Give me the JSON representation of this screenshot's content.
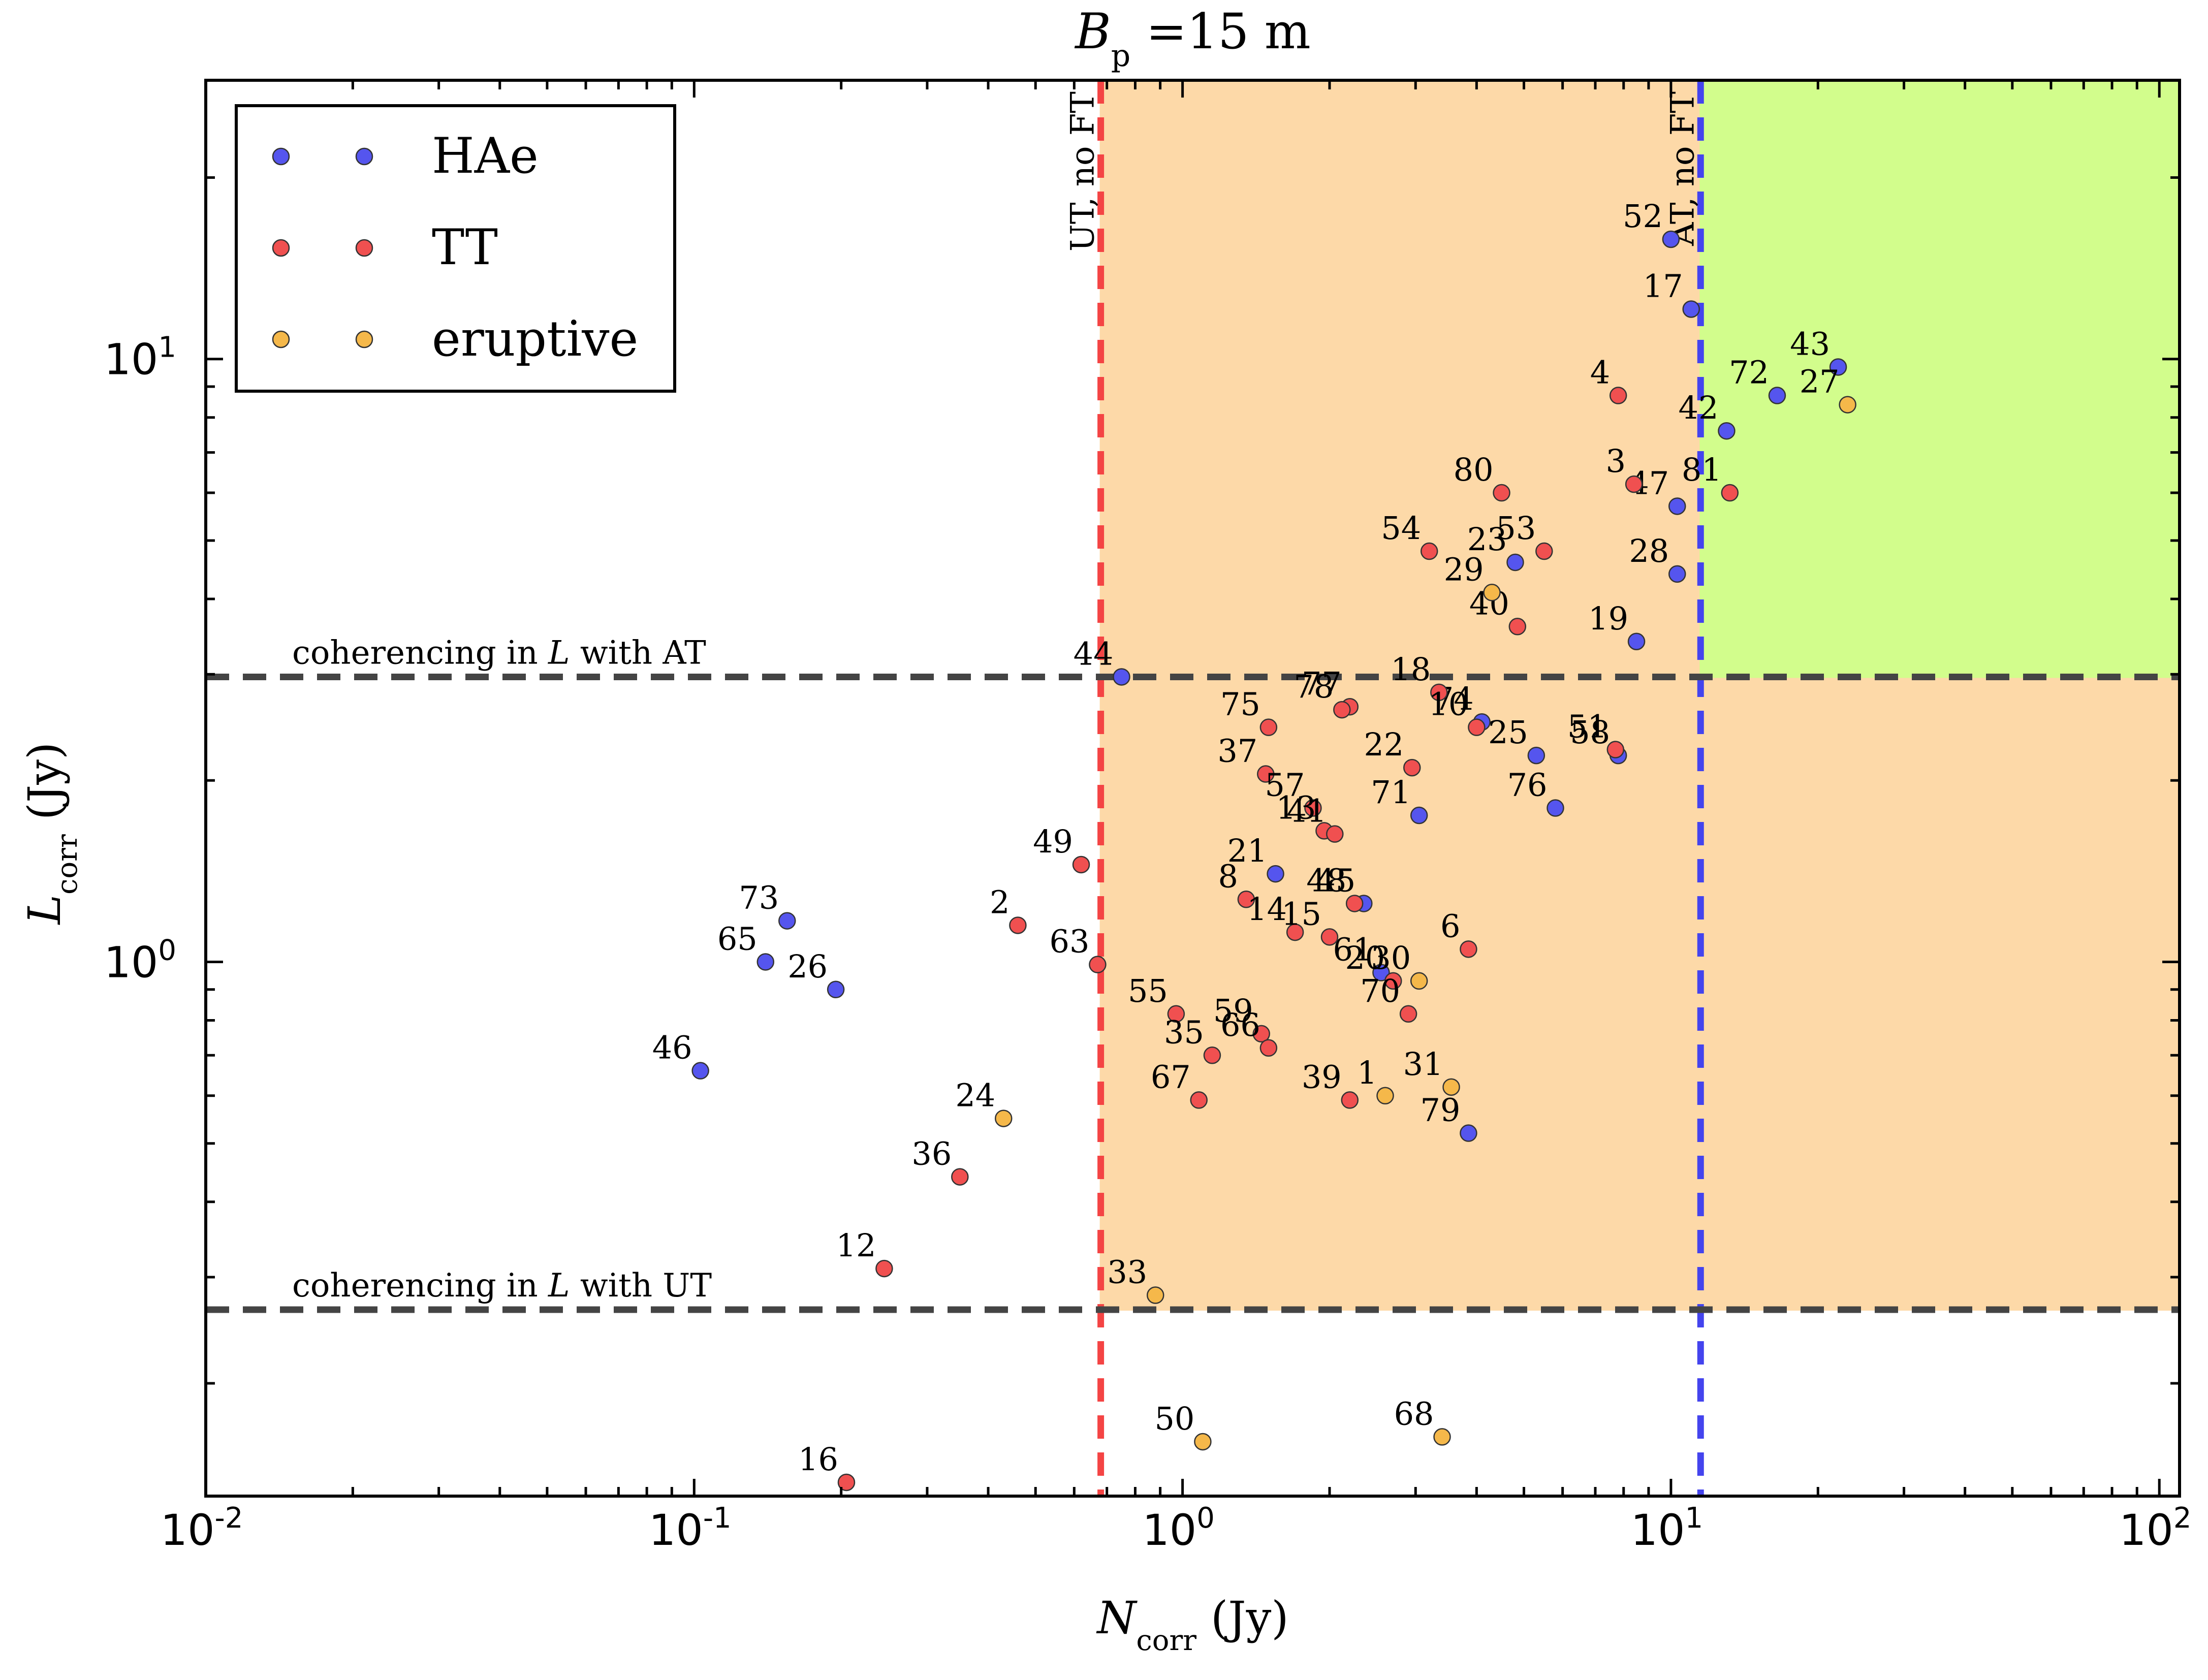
{
  "chart_data": {
    "type": "scatter",
    "title": "B_p = 15 m",
    "xlabel": "N_corr (Jy)",
    "ylabel": "L_corr (Jy)",
    "x_scale": "log",
    "y_scale": "log",
    "xlim": [
      0.01,
      110
    ],
    "ylim": [
      0.13,
      29
    ],
    "x_ticks": [
      {
        "value": 0.01,
        "label": "10^-2"
      },
      {
        "value": 0.1,
        "label": "10^-1"
      },
      {
        "value": 1,
        "label": "10^0"
      },
      {
        "value": 10,
        "label": "10^1"
      },
      {
        "value": 100,
        "label": "10^2"
      }
    ],
    "y_ticks": [
      {
        "value": 1,
        "label": "10^0"
      },
      {
        "value": 10,
        "label": "10^1"
      }
    ],
    "grid": false,
    "legend": {
      "placement": "top-left",
      "entries": [
        {
          "name": "HAe",
          "color": "#5555ee"
        },
        {
          "name": "TT",
          "color": "#f05050"
        },
        {
          "name": "eruptive",
          "color": "#f5b84a"
        }
      ]
    },
    "reference_lines": [
      {
        "orientation": "vertical",
        "value": 0.68,
        "color": "#f44444",
        "label": "UT, no FT"
      },
      {
        "orientation": "vertical",
        "value": 11.5,
        "color": "#4444ee",
        "label": "AT, no FT"
      },
      {
        "orientation": "horizontal",
        "value": 2.97,
        "color": "#444444",
        "label": "coherencing in L with AT"
      },
      {
        "orientation": "horizontal",
        "value": 0.265,
        "color": "#444444",
        "label": "coherencing in L with UT"
      }
    ],
    "regions": [
      {
        "x": [
          0.68,
          110
        ],
        "y": [
          0.265,
          29
        ],
        "color": "#fdd9a8"
      },
      {
        "x": [
          11.5,
          110
        ],
        "y": [
          2.97,
          29
        ],
        "color": "#d2fd8c"
      }
    ],
    "series": [
      {
        "name": "HAe",
        "color": "#5555ee",
        "points": [
          {
            "label": "52",
            "x": 10.0,
            "y": 15.8
          },
          {
            "label": "17",
            "x": 11.0,
            "y": 12.1
          },
          {
            "label": "43",
            "x": 22.0,
            "y": 9.7
          },
          {
            "label": "72",
            "x": 16.5,
            "y": 8.7
          },
          {
            "label": "42",
            "x": 13.0,
            "y": 7.6
          },
          {
            "label": "47",
            "x": 10.3,
            "y": 5.7
          },
          {
            "label": "28",
            "x": 10.3,
            "y": 4.4
          },
          {
            "label": "19",
            "x": 8.5,
            "y": 3.4
          },
          {
            "label": "23",
            "x": 4.8,
            "y": 4.6
          },
          {
            "label": "44",
            "x": 0.75,
            "y": 2.97
          },
          {
            "label": "74",
            "x": 4.1,
            "y": 2.5
          },
          {
            "label": "25",
            "x": 5.3,
            "y": 2.2
          },
          {
            "label": "58",
            "x": 7.8,
            "y": 2.2
          },
          {
            "label": "76",
            "x": 5.8,
            "y": 1.8
          },
          {
            "label": "71",
            "x": 3.05,
            "y": 1.75
          },
          {
            "label": "21",
            "x": 1.55,
            "y": 1.4
          },
          {
            "label": "45",
            "x": 2.35,
            "y": 1.25
          },
          {
            "label": "61",
            "x": 2.55,
            "y": 0.96
          },
          {
            "label": "73",
            "x": 0.155,
            "y": 1.17
          },
          {
            "label": "65",
            "x": 0.14,
            "y": 1.0
          },
          {
            "label": "26",
            "x": 0.195,
            "y": 0.9
          },
          {
            "label": "46",
            "x": 0.103,
            "y": 0.66
          },
          {
            "label": "79",
            "x": 3.85,
            "y": 0.52
          }
        ]
      },
      {
        "name": "TT",
        "color": "#f05050",
        "points": [
          {
            "label": "4",
            "x": 7.8,
            "y": 8.7
          },
          {
            "label": "81",
            "x": 13.2,
            "y": 6.0
          },
          {
            "label": "3",
            "x": 8.4,
            "y": 6.2
          },
          {
            "label": "80",
            "x": 4.5,
            "y": 6.0
          },
          {
            "label": "53",
            "x": 5.5,
            "y": 4.8
          },
          {
            "label": "54",
            "x": 3.2,
            "y": 4.8
          },
          {
            "label": "40",
            "x": 4.85,
            "y": 3.6
          },
          {
            "label": "18",
            "x": 3.35,
            "y": 2.8
          },
          {
            "label": "10",
            "x": 4.0,
            "y": 2.45
          },
          {
            "label": "77",
            "x": 2.2,
            "y": 2.65
          },
          {
            "label": "78",
            "x": 2.12,
            "y": 2.62
          },
          {
            "label": "75",
            "x": 1.5,
            "y": 2.45
          },
          {
            "label": "22",
            "x": 2.95,
            "y": 2.1
          },
          {
            "label": "51",
            "x": 7.7,
            "y": 2.25
          },
          {
            "label": "37",
            "x": 1.48,
            "y": 2.05
          },
          {
            "label": "57",
            "x": 1.85,
            "y": 1.8
          },
          {
            "label": "13",
            "x": 1.95,
            "y": 1.65
          },
          {
            "label": "41",
            "x": 2.05,
            "y": 1.63
          },
          {
            "label": "49",
            "x": 0.62,
            "y": 1.45
          },
          {
            "label": "8",
            "x": 1.35,
            "y": 1.27
          },
          {
            "label": "48",
            "x": 2.25,
            "y": 1.25
          },
          {
            "label": "14",
            "x": 1.7,
            "y": 1.12
          },
          {
            "label": "15",
            "x": 2.0,
            "y": 1.1
          },
          {
            "label": "6",
            "x": 3.85,
            "y": 1.05
          },
          {
            "label": "2",
            "x": 0.46,
            "y": 1.15
          },
          {
            "label": "63",
            "x": 0.67,
            "y": 0.99
          },
          {
            "label": "20",
            "x": 2.7,
            "y": 0.93
          },
          {
            "label": "70",
            "x": 2.9,
            "y": 0.82
          },
          {
            "label": "55",
            "x": 0.97,
            "y": 0.82
          },
          {
            "label": "59",
            "x": 1.45,
            "y": 0.76
          },
          {
            "label": "66",
            "x": 1.5,
            "y": 0.72
          },
          {
            "label": "35",
            "x": 1.15,
            "y": 0.7
          },
          {
            "label": "67",
            "x": 1.08,
            "y": 0.59
          },
          {
            "label": "39",
            "x": 2.2,
            "y": 0.59
          },
          {
            "label": "36",
            "x": 0.35,
            "y": 0.44
          },
          {
            "label": "12",
            "x": 0.245,
            "y": 0.31
          },
          {
            "label": "16",
            "x": 0.205,
            "y": 0.137
          }
        ]
      },
      {
        "name": "eruptive",
        "color": "#f5b84a",
        "points": [
          {
            "label": "27",
            "x": 23.0,
            "y": 8.4
          },
          {
            "label": "29",
            "x": 4.3,
            "y": 4.1
          },
          {
            "label": "30",
            "x": 3.05,
            "y": 0.93
          },
          {
            "label": "1",
            "x": 2.6,
            "y": 0.6
          },
          {
            "label": "31",
            "x": 3.55,
            "y": 0.62
          },
          {
            "label": "24",
            "x": 0.43,
            "y": 0.55
          },
          {
            "label": "33",
            "x": 0.88,
            "y": 0.28
          },
          {
            "label": "50",
            "x": 1.1,
            "y": 0.16
          },
          {
            "label": "68",
            "x": 3.4,
            "y": 0.163
          }
        ]
      }
    ]
  }
}
